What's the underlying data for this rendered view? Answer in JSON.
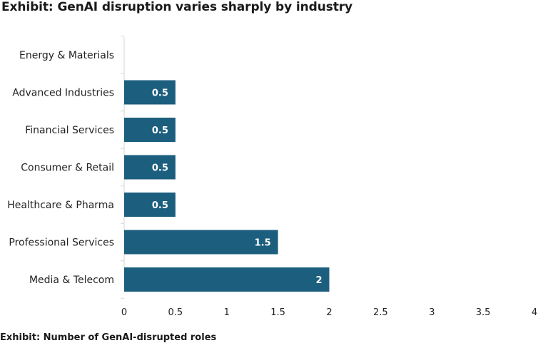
{
  "chart_data": {
    "type": "bar",
    "orientation": "horizontal",
    "title": "Exhibit: GenAI disruption varies sharply by industry",
    "categories": [
      "Energy & Materials",
      "Advanced Industries",
      "Financial Services",
      "Consumer & Retail",
      "Healthcare & Pharma",
      "Professional Services",
      "Media & Telecom"
    ],
    "values": [
      0,
      0.5,
      0.5,
      0.5,
      0.5,
      1.5,
      2
    ],
    "data_labels": [
      "",
      "0.5",
      "0.5",
      "0.5",
      "0.5",
      "1.5",
      "2"
    ],
    "xlim": [
      0,
      4
    ],
    "x_ticks": [
      "0",
      "0.5",
      "1",
      "1.5",
      "2",
      "2.5",
      "3",
      "3.5",
      "4"
    ],
    "xlabel": "",
    "ylabel": "",
    "grid": false,
    "bar_color": "#1c5e7e"
  },
  "footnote": "Exhibit: Number of GenAI-disrupted roles"
}
